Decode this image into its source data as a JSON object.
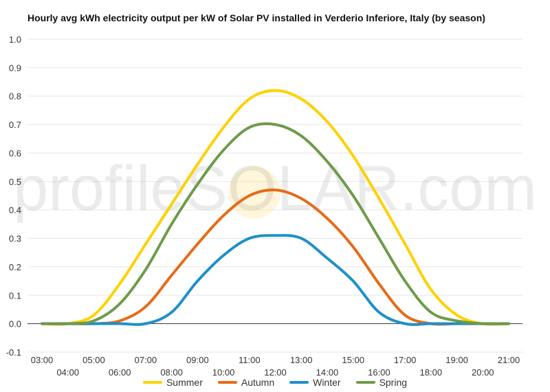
{
  "chart_data": {
    "type": "line",
    "title": "Hourly avg kWh electricity output per kW of Solar PV installed in Verderio Inferiore, Italy (by season)",
    "xlabel": "",
    "ylabel": "",
    "ylim": [
      -0.1,
      1.0
    ],
    "y_ticks": [
      "-0.1",
      "0.0",
      "0.1",
      "0.2",
      "0.3",
      "0.4",
      "0.5",
      "0.6",
      "0.7",
      "0.8",
      "0.9",
      "1.0"
    ],
    "x": [
      3,
      4,
      5,
      6,
      7,
      8,
      9,
      10,
      11,
      12,
      13,
      14,
      15,
      16,
      17,
      18,
      19,
      20,
      21
    ],
    "x_tick_labels": [
      "03:00",
      "04:00",
      "05:00",
      "06:00",
      "07:00",
      "08:00",
      "09:00",
      "10:00",
      "11:00",
      "12:00",
      "13:00",
      "14:00",
      "15:00",
      "16:00",
      "17:00",
      "18:00",
      "19:00",
      "20:00",
      "21:00"
    ],
    "grid": true,
    "legend_position": "bottom",
    "series": [
      {
        "name": "Summer",
        "color": "#FFD100",
        "values": [
          0.0,
          0.0,
          0.03,
          0.14,
          0.28,
          0.42,
          0.56,
          0.69,
          0.79,
          0.82,
          0.79,
          0.71,
          0.59,
          0.44,
          0.28,
          0.12,
          0.03,
          0.0,
          0.0
        ]
      },
      {
        "name": "Autumn",
        "color": "#E66B19",
        "values": [
          0.0,
          0.0,
          0.0,
          0.01,
          0.06,
          0.17,
          0.28,
          0.38,
          0.45,
          0.47,
          0.44,
          0.37,
          0.27,
          0.14,
          0.03,
          0.0,
          0.0,
          0.0,
          0.0
        ]
      },
      {
        "name": "Winter",
        "color": "#1E90C8",
        "values": [
          0.0,
          0.0,
          0.0,
          0.0,
          0.0,
          0.04,
          0.15,
          0.24,
          0.3,
          0.31,
          0.3,
          0.23,
          0.15,
          0.04,
          0.0,
          0.0,
          0.0,
          0.0,
          0.0
        ]
      },
      {
        "name": "Spring",
        "color": "#6E9B49",
        "values": [
          0.0,
          0.0,
          0.01,
          0.07,
          0.19,
          0.35,
          0.49,
          0.61,
          0.69,
          0.7,
          0.66,
          0.57,
          0.45,
          0.3,
          0.15,
          0.04,
          0.01,
          0.0,
          0.0
        ]
      }
    ],
    "watermark": "profileSOLAR.com"
  }
}
